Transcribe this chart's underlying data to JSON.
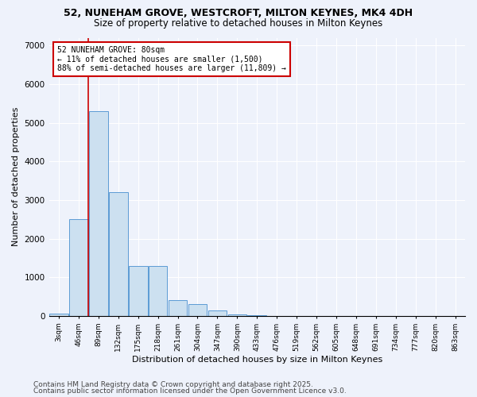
{
  "title_line1": "52, NUNEHAM GROVE, WESTCROFT, MILTON KEYNES, MK4 4DH",
  "title_line2": "Size of property relative to detached houses in Milton Keynes",
  "xlabel": "Distribution of detached houses by size in Milton Keynes",
  "ylabel": "Number of detached properties",
  "categories": [
    "3sqm",
    "46sqm",
    "89sqm",
    "132sqm",
    "175sqm",
    "218sqm",
    "261sqm",
    "304sqm",
    "347sqm",
    "390sqm",
    "433sqm",
    "476sqm",
    "519sqm",
    "562sqm",
    "605sqm",
    "648sqm",
    "691sqm",
    "734sqm",
    "777sqm",
    "820sqm",
    "863sqm"
  ],
  "values": [
    60,
    2500,
    5300,
    3200,
    1300,
    1300,
    400,
    300,
    150,
    30,
    10,
    5,
    2,
    1,
    0,
    0,
    0,
    0,
    0,
    0,
    0
  ],
  "bar_color": "#cce0f0",
  "bar_edge_color": "#5b9bd5",
  "annotation_text": "52 NUNEHAM GROVE: 80sqm\n← 11% of detached houses are smaller (1,500)\n88% of semi-detached houses are larger (11,809) →",
  "annotation_box_color": "#ffffff",
  "annotation_box_edge": "#cc0000",
  "vline_color": "#cc0000",
  "ylim": [
    0,
    7200
  ],
  "yticks": [
    0,
    1000,
    2000,
    3000,
    4000,
    5000,
    6000,
    7000
  ],
  "footer_line1": "Contains HM Land Registry data © Crown copyright and database right 2025.",
  "footer_line2": "Contains public sector information licensed under the Open Government Licence v3.0.",
  "bg_color": "#eef2fb",
  "grid_color": "#ffffff",
  "title_fontsize": 9,
  "subtitle_fontsize": 8.5,
  "axis_label_fontsize": 8,
  "tick_fontsize": 7.5,
  "footer_fontsize": 6.5
}
